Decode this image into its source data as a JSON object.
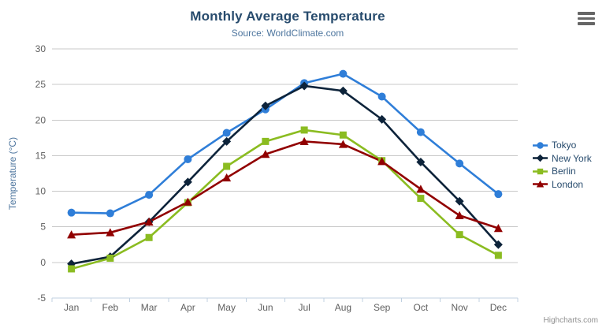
{
  "chart": {
    "title": "Monthly Average Temperature",
    "subtitle": "Source: WorldClimate.com",
    "credit": "Highcharts.com",
    "context_menu_icon": "hamburger-icon"
  },
  "chart_data": {
    "type": "line",
    "title": "Monthly Average Temperature",
    "subtitle": "Source: WorldClimate.com",
    "categories": [
      "Jan",
      "Feb",
      "Mar",
      "Apr",
      "May",
      "Jun",
      "Jul",
      "Aug",
      "Sep",
      "Oct",
      "Nov",
      "Dec"
    ],
    "series": [
      {
        "name": "Tokyo",
        "color": "#2f7ed8",
        "marker": "circle",
        "values": [
          7.0,
          6.9,
          9.5,
          14.5,
          18.2,
          21.5,
          25.2,
          26.5,
          23.3,
          18.3,
          13.9,
          9.6
        ]
      },
      {
        "name": "New York",
        "color": "#0d233a",
        "marker": "diamond",
        "values": [
          -0.2,
          0.8,
          5.7,
          11.3,
          17.0,
          22.0,
          24.8,
          24.1,
          20.1,
          14.1,
          8.6,
          2.5
        ]
      },
      {
        "name": "Berlin",
        "color": "#8bbc21",
        "marker": "square",
        "values": [
          -0.9,
          0.6,
          3.5,
          8.4,
          13.5,
          17.0,
          18.6,
          17.9,
          14.3,
          9.0,
          3.9,
          1.0
        ]
      },
      {
        "name": "London",
        "color": "#910000",
        "marker": "triangle",
        "values": [
          3.9,
          4.2,
          5.7,
          8.5,
          11.9,
          15.2,
          17.0,
          16.6,
          14.2,
          10.3,
          6.6,
          4.8
        ]
      }
    ],
    "xlabel": "",
    "ylabel": "Temperature (°C)",
    "ylim": [
      -5,
      30
    ],
    "yticks": [
      -5,
      0,
      5,
      10,
      15,
      20,
      25,
      30
    ],
    "grid": true,
    "legend_position": "right"
  },
  "colors": {
    "title": "#274b6d",
    "subtitle": "#4d759e",
    "axis_title": "#4d759e",
    "axis_labels": "#606060",
    "grid_line": "#c8c8c8",
    "axis_line": "#c0d0e0",
    "legend_text": "#274b6d",
    "credit_text": "#909090",
    "menu_icon": "#666666",
    "background": "#ffffff"
  }
}
